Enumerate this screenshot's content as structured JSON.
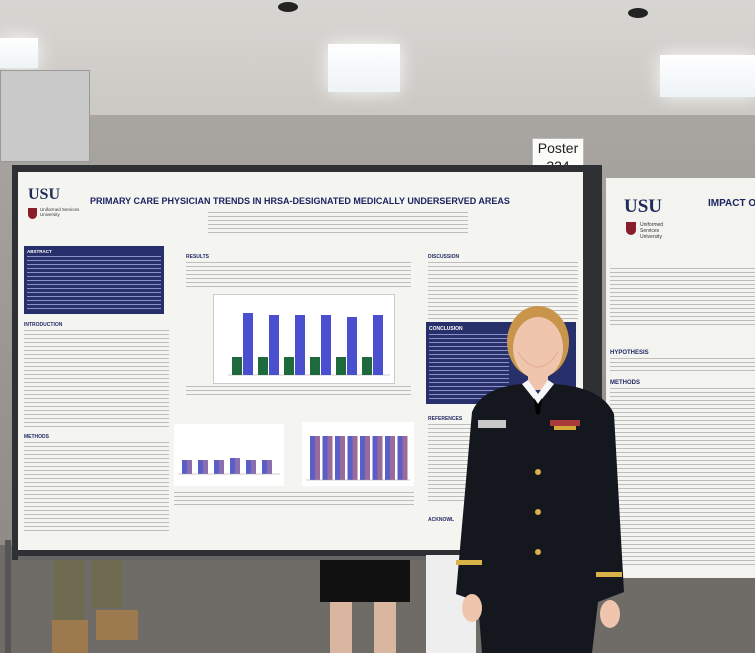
{
  "sign": {
    "line1": "Poster",
    "line2": "324"
  },
  "poster": {
    "logo": "USU",
    "logo_sub": "Uniformed Services University",
    "title": "PRIMARY CARE PHYSICIAN TRENDS IN HRSA-DESIGNATED MEDICALLY UNDERSERVED AREAS",
    "sections": {
      "abstract": "ABSTRACT",
      "introduction": "INTRODUCTION",
      "methods": "METHODS",
      "results": "RESULTS",
      "discussion": "DISCUSSION",
      "conclusion": "CONCLUSION",
      "references": "REFERENCES",
      "acknowledgments": "ACKNOWL"
    }
  },
  "poster2": {
    "logo": "USU",
    "logo_sub": "Uniformed Services University",
    "title_partial": "IMPACT O",
    "hypothesis": "HYPOTHESIS",
    "methods": "METHODS"
  },
  "colors": {
    "navy": "#28306b",
    "bar_blue": "#4a4fd0",
    "bar_green": "#1f6a3c",
    "uniform": "#15171f"
  }
}
